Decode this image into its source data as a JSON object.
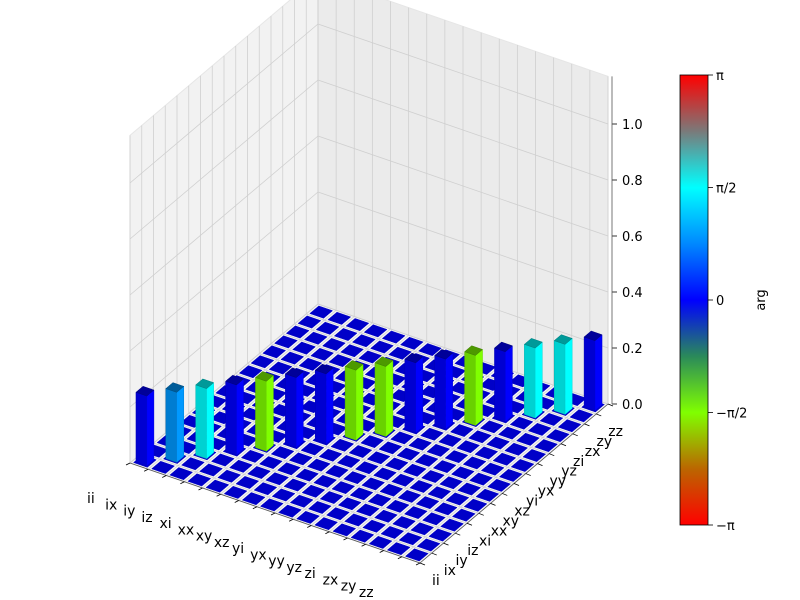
{
  "chart_data": {
    "type": "bar3d",
    "x_categories": [
      "ii",
      "ix",
      "iy",
      "iz",
      "xi",
      "xx",
      "xy",
      "xz",
      "yi",
      "yx",
      "yy",
      "yz",
      "zi",
      "zx",
      "zy",
      "zz"
    ],
    "y_categories": [
      "ii",
      "ix",
      "iy",
      "iz",
      "xi",
      "xx",
      "xy",
      "xz",
      "yi",
      "yx",
      "yy",
      "yz",
      "zi",
      "zx",
      "zy",
      "zz"
    ],
    "x_tick_labels_shown": [
      "ii",
      "ix",
      "iy",
      "iz",
      "xi",
      "xx",
      "xy",
      "xz",
      "yi",
      "yx",
      "yy",
      "yz",
      "zi",
      "zx",
      "zy",
      "zz"
    ],
    "y_tick_labels_shown": [
      "ii",
      "ix",
      "iy",
      "iz",
      "xi",
      "xx",
      "xy",
      "xz",
      "yi",
      "yx",
      "yy",
      "yz",
      "zi",
      "zx",
      "zy",
      "zz"
    ],
    "zlim": [
      0,
      1.0
    ],
    "z_ticks": [
      "0.0",
      "0.2",
      "0.4",
      "0.6",
      "0.8",
      "1.0"
    ],
    "grid": true,
    "bars": [
      {
        "x": "ii",
        "y": "ii",
        "z": 0.25,
        "phase": 0.0
      },
      {
        "x": "ix",
        "y": "ix",
        "z": 0.25,
        "phase": 0.9
      },
      {
        "x": "iy",
        "y": "iy",
        "z": 0.25,
        "phase": 1.57
      },
      {
        "x": "iz",
        "y": "iz",
        "z": 0.25,
        "phase": 0.0
      },
      {
        "x": "xi",
        "y": "xi",
        "z": 0.25,
        "phase": -1.57
      },
      {
        "x": "xx",
        "y": "xx",
        "z": 0.25,
        "phase": 0.0
      },
      {
        "x": "xy",
        "y": "xy",
        "z": 0.25,
        "phase": 0.0
      },
      {
        "x": "xz",
        "y": "xz",
        "z": 0.25,
        "phase": -1.57
      },
      {
        "x": "yi",
        "y": "yi",
        "z": 0.25,
        "phase": -1.57
      },
      {
        "x": "yx",
        "y": "yx",
        "z": 0.25,
        "phase": 0.0
      },
      {
        "x": "yy",
        "y": "yy",
        "z": 0.25,
        "phase": 0.0
      },
      {
        "x": "yz",
        "y": "yz",
        "z": 0.25,
        "phase": -1.57
      },
      {
        "x": "zi",
        "y": "zi",
        "z": 0.25,
        "phase": 0.0
      },
      {
        "x": "zx",
        "y": "zx",
        "z": 0.25,
        "phase": 1.57
      },
      {
        "x": "zy",
        "y": "zy",
        "z": 0.25,
        "phase": 1.57
      },
      {
        "x": "zz",
        "y": "zz",
        "z": 0.25,
        "phase": 0.0
      }
    ],
    "colorbar": {
      "label": "arg",
      "tick_labels": [
        "π",
        "π/2",
        "0",
        "−π/2",
        "−π"
      ],
      "range": [
        -3.14159,
        3.14159
      ],
      "colormap": "jet-like cyclic"
    }
  }
}
